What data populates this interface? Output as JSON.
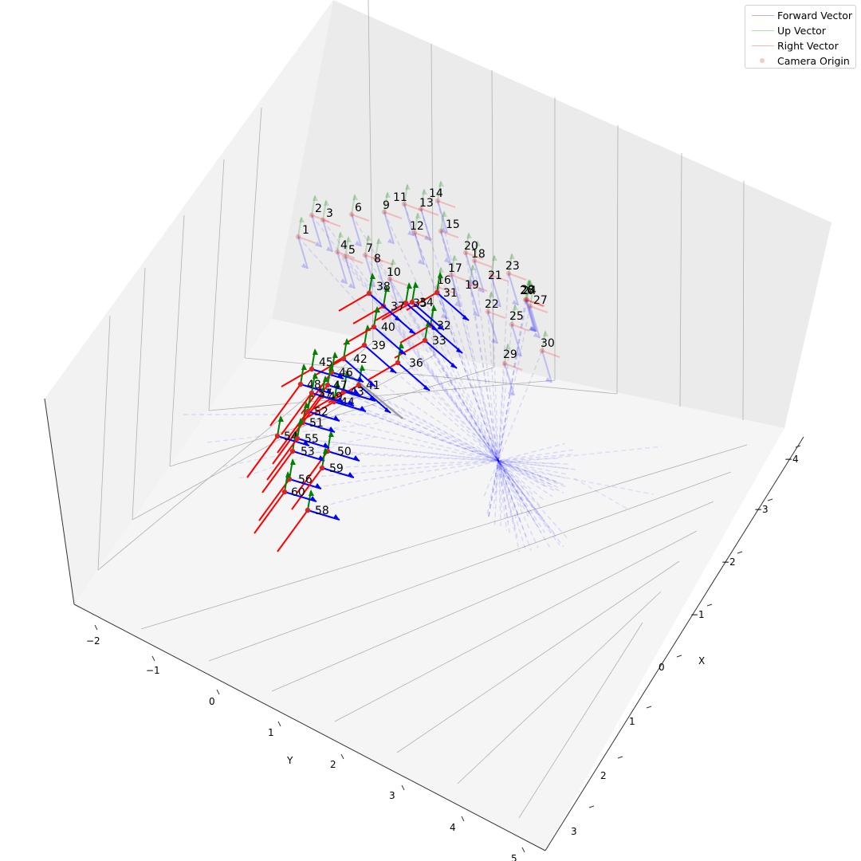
{
  "colors": {
    "forward": "#0000ff",
    "up": "#008000",
    "right": "#ff0000",
    "origin": "#d62728",
    "pane_back": "#ebebeb",
    "pane_left": "#f2f2f2",
    "pane_floor": "#f5f5f5",
    "grid": "#b0b0b0"
  },
  "legend": {
    "placement": "top-right",
    "items": [
      {
        "label": "Forward Vector",
        "symbol": "line",
        "color": "#0000ff",
        "alpha": 0.25
      },
      {
        "label": "Up Vector",
        "symbol": "line",
        "color": "#008000",
        "alpha": 0.25
      },
      {
        "label": "Right Vector",
        "symbol": "line",
        "color": "#ff0000",
        "alpha": 0.25
      },
      {
        "label": "Camera Origin",
        "symbol": "dot",
        "color": "#d62728",
        "alpha": 0.25
      }
    ]
  },
  "chart_data": {
    "type": "scatter",
    "projection": "3d",
    "title": "",
    "xlabel": "X",
    "ylabel": "Y",
    "zlabel": "",
    "x_ticks": [
      "−4",
      "−3",
      "−2",
      "−1",
      "0",
      "1",
      "2",
      "3"
    ],
    "y_ticks": [
      "−2",
      "−1",
      "0",
      "1",
      "2",
      "3",
      "4",
      "5"
    ],
    "grid": true,
    "series": [
      {
        "name": "Camera Origin",
        "labels": [
          "1",
          "2",
          "3",
          "4",
          "5",
          "6",
          "7",
          "8",
          "9",
          "10",
          "11",
          "12",
          "13",
          "14",
          "15",
          "16",
          "17",
          "18",
          "19",
          "20",
          "21",
          "22",
          "23",
          "24",
          "25",
          "26",
          "27",
          "28",
          "29",
          "30"
        ],
        "highlighted": false
      },
      {
        "name": "Camera Origin",
        "labels": [
          "31",
          "32",
          "33",
          "34",
          "35",
          "36",
          "37",
          "38",
          "39",
          "40",
          "41",
          "42",
          "43",
          "44",
          "45",
          "46",
          "47",
          "48",
          "49",
          "50",
          "51",
          "52",
          "53",
          "54",
          "55",
          "56",
          "57",
          "58",
          "59",
          "60"
        ],
        "highlighted": true
      }
    ]
  }
}
